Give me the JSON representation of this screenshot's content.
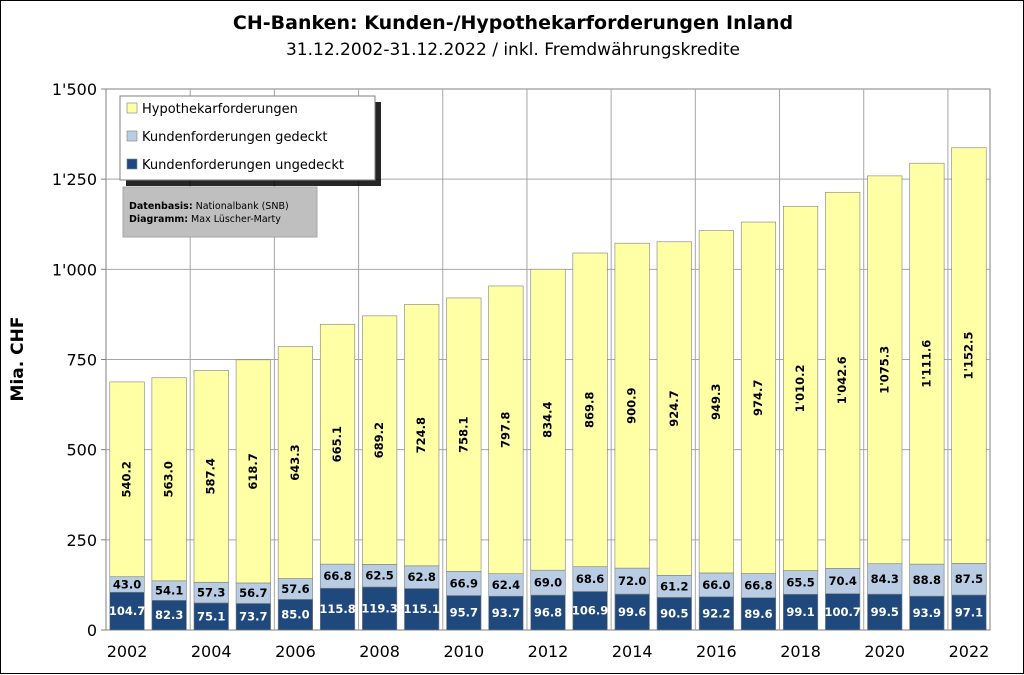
{
  "chart_data": {
    "type": "bar",
    "stacked": true,
    "title": "CH-Banken: Kunden-/Hypothekarforderungen  Inland",
    "subtitle": "31.12.2002-31.12.2022 / inkl. Fremdwährungskredite",
    "ylabel": "Mia. CHF",
    "ylim": [
      0,
      1500
    ],
    "yticks": [
      0,
      250,
      500,
      750,
      1000,
      1250,
      1500
    ],
    "ytick_labels": [
      "0",
      "250",
      "500",
      "750",
      "1'000",
      "1'250",
      "1'500"
    ],
    "categories": [
      "2002",
      "2003",
      "2004",
      "2005",
      "2006",
      "2007",
      "2008",
      "2009",
      "2010",
      "2011",
      "2012",
      "2013",
      "2014",
      "2015",
      "2016",
      "2017",
      "2018",
      "2019",
      "2020",
      "2021",
      "2022"
    ],
    "xtick_labels": [
      "2002",
      "",
      "2004",
      "",
      "2006",
      "",
      "2008",
      "",
      "2010",
      "",
      "2012",
      "",
      "2014",
      "",
      "2016",
      "",
      "2018",
      "",
      "2020",
      "",
      "2022"
    ],
    "grid": true,
    "legend_position": "top-left",
    "series": [
      {
        "name": "Kundenforderungen ungedeckt",
        "color": "#1f497d",
        "label_color": "#ffffff",
        "values": [
          104.7,
          82.3,
          75.1,
          73.7,
          85.0,
          115.8,
          119.3,
          115.1,
          95.7,
          93.7,
          96.8,
          106.9,
          99.6,
          90.5,
          92.2,
          89.6,
          99.1,
          100.7,
          99.5,
          93.9,
          97.1
        ],
        "labels": [
          "104.7",
          "82.3",
          "75.1",
          "73.7",
          "85.0",
          "115.8",
          "119.3",
          "115.1",
          "95.7",
          "93.7",
          "96.8",
          "106.9",
          "99.6",
          "90.5",
          "92.2",
          "89.6",
          "99.1",
          "100.7",
          "99.5",
          "93.9",
          "97.1"
        ]
      },
      {
        "name": "Kundenforderungen gedeckt",
        "color": "#b8cce4",
        "label_color": "#000000",
        "values": [
          43.0,
          54.1,
          57.3,
          56.7,
          57.6,
          66.8,
          62.5,
          62.8,
          66.9,
          62.4,
          69.0,
          68.6,
          72.0,
          61.2,
          66.0,
          66.8,
          65.5,
          70.4,
          84.3,
          88.8,
          87.5
        ],
        "labels": [
          "43.0",
          "54.1",
          "57.3",
          "56.7",
          "57.6",
          "66.8",
          "62.5",
          "62.8",
          "66.9",
          "62.4",
          "69.0",
          "68.6",
          "72.0",
          "61.2",
          "66.0",
          "66.8",
          "65.5",
          "70.4",
          "84.3",
          "88.8",
          "87.5"
        ]
      },
      {
        "name": "Hypothekarforderungen",
        "color": "#ffffa6",
        "label_color": "#000000",
        "values": [
          540.2,
          563.0,
          587.4,
          618.7,
          643.3,
          665.1,
          689.2,
          724.8,
          758.1,
          797.8,
          834.4,
          869.8,
          900.9,
          924.7,
          949.3,
          974.7,
          1010.2,
          1042.6,
          1075.3,
          1111.6,
          1152.5
        ],
        "labels": [
          "540.2",
          "563.0",
          "587.4",
          "618.7",
          "643.3",
          "665.1",
          "689.2",
          "724.8",
          "758.1",
          "797.8",
          "834.4",
          "869.8",
          "900.9",
          "924.7",
          "949.3",
          "974.7",
          "1'010.2",
          "1'042.6",
          "1'075.3",
          "1'111.6",
          "1'152.5"
        ]
      }
    ],
    "legend_order": [
      "Hypothekarforderungen",
      "Kundenforderungen gedeckt",
      "Kundenforderungen ungedeckt"
    ]
  },
  "info_box": {
    "line1_bold": "Datenbasis:",
    "line1_text": "Nationalbank (SNB)",
    "line2_bold": "Diagramm:",
    "line2_text": "Max Lüscher-Marty"
  }
}
